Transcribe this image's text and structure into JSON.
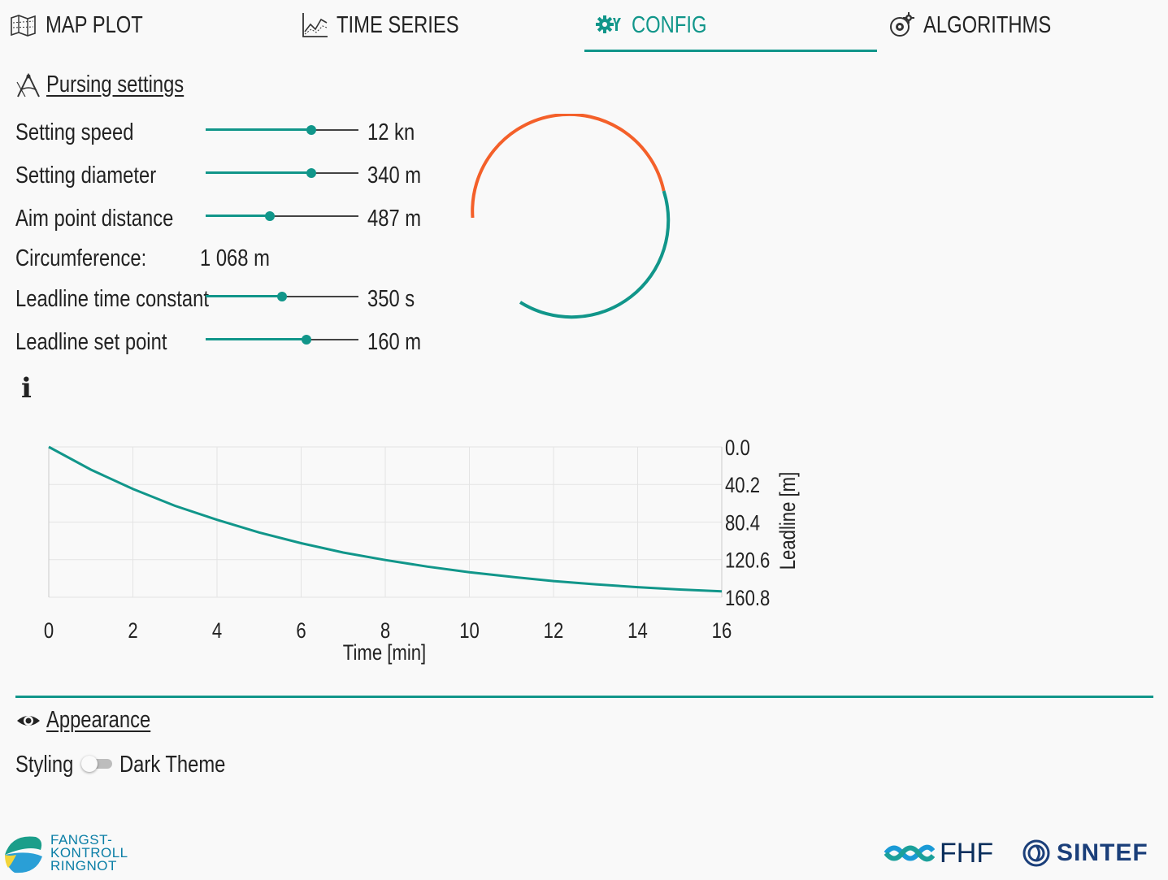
{
  "tabs": [
    {
      "label": "MAP PLOT",
      "icon": "map-icon",
      "active": false
    },
    {
      "label": "TIME SERIES",
      "icon": "chart-line-icon",
      "active": false
    },
    {
      "label": "CONFIG",
      "icon": "gears-icon",
      "active": true
    },
    {
      "label": "ALGORITHMS",
      "icon": "gear-brain-icon",
      "active": false
    }
  ],
  "pursing": {
    "title": "Pursing settings",
    "rows": [
      {
        "label": "Setting speed",
        "value": "12 kn",
        "fraction": 0.69
      },
      {
        "label": "Setting diameter",
        "value": "340 m",
        "fraction": 0.69
      },
      {
        "label": "Aim point distance",
        "value": "487 m",
        "fraction": 0.42
      },
      {
        "label": "Leadline time constant",
        "value": "350 s",
        "fraction": 0.5
      },
      {
        "label": "Leadline set point",
        "value": "160 m",
        "fraction": 0.66
      }
    ],
    "circumference_label": "Circumference:",
    "circumference_value": "1 068 m",
    "info_glyph": "i"
  },
  "circle_gauge": {
    "colors": {
      "orange": "#f4602a",
      "teal": "#11968a"
    }
  },
  "chart_data": {
    "type": "line",
    "title": "",
    "xlabel": "Time [min]",
    "ylabel": "Leadline [m]",
    "x_ticks": [
      "0",
      "2",
      "4",
      "6",
      "8",
      "10",
      "12",
      "14",
      "16"
    ],
    "y_ticks": [
      "0.0",
      "40.2",
      "80.4",
      "120.6",
      "160.8"
    ],
    "xlim": [
      0,
      16
    ],
    "ylim": [
      0,
      160.8
    ],
    "y_inverted": true,
    "grid": true,
    "series": [
      {
        "color": "#11968a",
        "x": [
          0,
          1,
          2,
          3,
          4,
          5,
          6,
          7,
          8,
          9,
          10,
          11,
          12,
          13,
          14,
          15,
          16
        ],
        "y": [
          0,
          24.3,
          45,
          63,
          78,
          91.5,
          103,
          113,
          121,
          128,
          134,
          139,
          143.5,
          147,
          150,
          152.5,
          154.5
        ]
      }
    ]
  },
  "appearance": {
    "title": "Appearance",
    "styling_label": "Styling",
    "theme_label": "Dark Theme",
    "dark_theme_on": false
  },
  "logos": {
    "fangst_lines": [
      "FANGST-",
      "KONTROLL",
      "RINGNOT"
    ],
    "fhf": "FHF",
    "sintef": "SINTEF"
  },
  "colors": {
    "accent": "#11968a",
    "orange": "#f4602a"
  }
}
